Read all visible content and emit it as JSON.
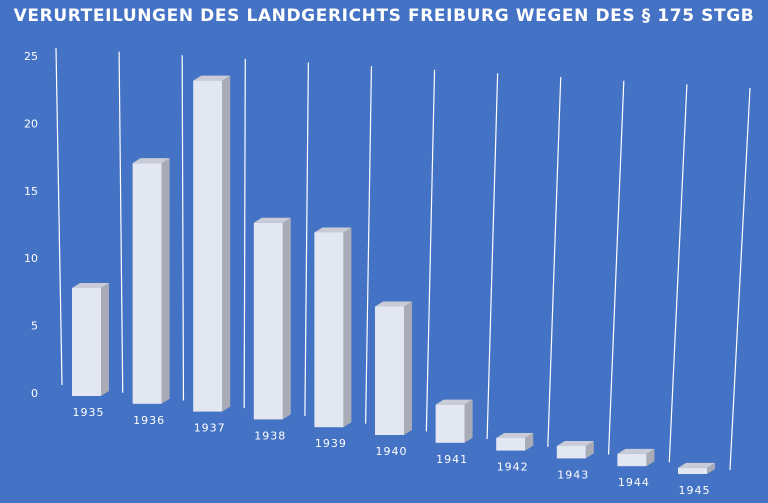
{
  "chart_data": {
    "type": "bar",
    "title": "VERURTEILUNGEN DES LANDGERICHTS FREIBURG WEGEN DES § 175 STGB",
    "xlabel": "",
    "ylabel": "",
    "categories": [
      "1935",
      "1936",
      "1937",
      "1938",
      "1939",
      "1940",
      "1941",
      "1942",
      "1943",
      "1944",
      "1945"
    ],
    "values": [
      8,
      18,
      25,
      15,
      15,
      10,
      3,
      1,
      1,
      1,
      0.5
    ],
    "ylim": [
      0,
      25
    ],
    "yticks": [
      "0",
      "5",
      "10",
      "15",
      "20",
      "25"
    ],
    "grid": true,
    "colors": {
      "background": "#4472C4",
      "bar_front": "#E3E7F2",
      "bar_side": "#A9ACB6",
      "bar_top": "#C9CCD6",
      "text": "#FFFFFF",
      "grid": "#FFFFFF"
    }
  }
}
